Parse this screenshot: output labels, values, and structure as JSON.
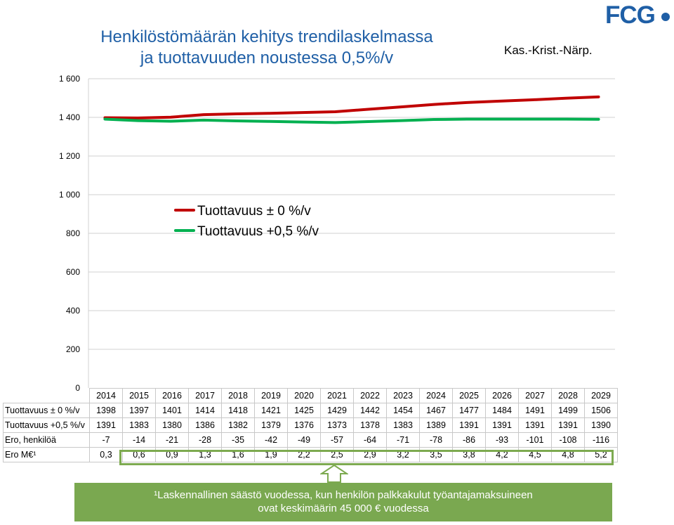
{
  "header": {
    "title_line1": "Henkilöstömäärän kehitys trendilaskelmassa",
    "title_line2": "ja tuottavuuden noustessa 0,5%/v",
    "region": "Kas.-Krist.-Närp.",
    "logo_text": "FCG"
  },
  "chart_data": {
    "type": "line",
    "title": "Henkilöstömäärän kehitys trendilaskelmassa ja tuottavuuden noustessa 0,5%/v",
    "xlabel": "",
    "ylabel": "",
    "ylim": [
      0,
      1600
    ],
    "yticks": [
      0,
      200,
      400,
      600,
      800,
      1000,
      1200,
      1400,
      1600
    ],
    "ytick_labels": [
      "0",
      "200",
      "400",
      "600",
      "800",
      "1 000",
      "1 200",
      "1 400",
      "1 600"
    ],
    "grid": true,
    "legend_position": "center-left",
    "categories": [
      "2014",
      "2015",
      "2016",
      "2017",
      "2018",
      "2019",
      "2020",
      "2021",
      "2022",
      "2023",
      "2024",
      "2025",
      "2026",
      "2027",
      "2028",
      "2029"
    ],
    "series": [
      {
        "name": "Tuottavuus ± 0 %/v",
        "color": "#c00000",
        "values": [
          1398,
          1397,
          1401,
          1414,
          1418,
          1421,
          1425,
          1429,
          1442,
          1454,
          1467,
          1477,
          1484,
          1491,
          1499,
          1506
        ]
      },
      {
        "name": "Tuottavuus +0,5 %/v",
        "color": "#00b050",
        "values": [
          1391,
          1383,
          1380,
          1386,
          1382,
          1379,
          1376,
          1373,
          1378,
          1383,
          1389,
          1391,
          1391,
          1391,
          1391,
          1390
        ]
      }
    ]
  },
  "table": {
    "rows": [
      {
        "label": "Tuottavuus ± 0 %/v",
        "values": [
          "1398",
          "1397",
          "1401",
          "1414",
          "1418",
          "1421",
          "1425",
          "1429",
          "1442",
          "1454",
          "1467",
          "1477",
          "1484",
          "1491",
          "1499",
          "1506"
        ]
      },
      {
        "label": "Tuottavuus +0,5 %/v",
        "values": [
          "1391",
          "1383",
          "1380",
          "1386",
          "1382",
          "1379",
          "1376",
          "1373",
          "1378",
          "1383",
          "1389",
          "1391",
          "1391",
          "1391",
          "1391",
          "1390"
        ]
      },
      {
        "label": "Ero, henkilöä",
        "values": [
          "-7",
          "-14",
          "-21",
          "-28",
          "-35",
          "-42",
          "-49",
          "-57",
          "-64",
          "-71",
          "-78",
          "-86",
          "-93",
          "-101",
          "-108",
          "-116"
        ]
      },
      {
        "label": "Ero M€¹",
        "values": [
          "0,3",
          "0,6",
          "0,9",
          "1,3",
          "1,6",
          "1,9",
          "2,2",
          "2,5",
          "2,9",
          "3,2",
          "3,5",
          "3,8",
          "4,2",
          "4,5",
          "4,8",
          "5,2"
        ]
      }
    ]
  },
  "note": {
    "line1": "¹Laskennallinen säästö vuodessa, kun henkilön palkkakulut työantajamaksuineen",
    "line2": "ovat keskimäärin 45 000 € vuodessa"
  },
  "colors": {
    "title": "#1f5fa6",
    "highlight": "#7daa50",
    "note_bg": "#7aa850"
  }
}
